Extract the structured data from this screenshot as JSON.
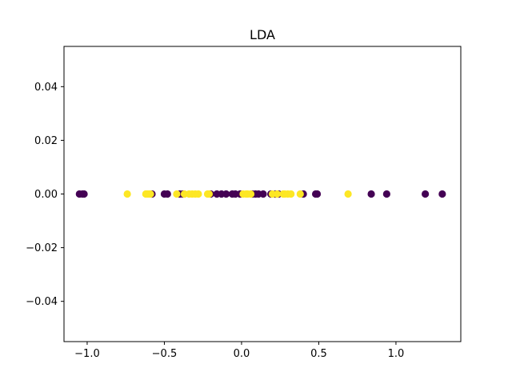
{
  "chart_data": {
    "type": "scatter",
    "title": "LDA",
    "xlabel": "",
    "ylabel": "",
    "xlim": [
      -1.15,
      1.42
    ],
    "ylim": [
      -0.055,
      0.055
    ],
    "xticks": [
      -1.0,
      -0.5,
      0.0,
      0.5,
      1.0
    ],
    "xtick_labels": [
      "−1.0",
      "−0.5",
      "0.0",
      "0.5",
      "1.0"
    ],
    "yticks": [
      -0.04,
      -0.02,
      0.0,
      0.02,
      0.04
    ],
    "ytick_labels": [
      "−0.04",
      "−0.02",
      "0.00",
      "0.02",
      "0.04"
    ],
    "grid": false,
    "colors": {
      "class_0": "#440154",
      "class_1": "#fde725",
      "axes": "#000000",
      "background": "#ffffff"
    },
    "series": [
      {
        "color": "#440154",
        "x": [
          -1.05,
          -1.03,
          -1.02,
          -0.58,
          -0.5,
          -0.48,
          -0.4,
          -0.38,
          -0.2,
          -0.16,
          -0.13,
          -0.1,
          -0.06,
          -0.04,
          -0.01,
          0.07,
          0.09,
          0.11,
          0.14,
          0.19,
          0.22,
          0.24,
          0.4,
          0.48,
          0.49,
          0.84,
          0.94,
          1.19,
          1.3
        ],
        "y": [
          0,
          0,
          0,
          0,
          0,
          0,
          0,
          0,
          0,
          0,
          0,
          0,
          0,
          0,
          0,
          0,
          0,
          0,
          0,
          0,
          0,
          0,
          0,
          0,
          0,
          0,
          0,
          0,
          0
        ]
      },
      {
        "color": "#fde725",
        "x": [
          -0.74,
          -0.62,
          -0.61,
          -0.6,
          -0.59,
          -0.42,
          -0.37,
          -0.34,
          -0.32,
          -0.3,
          -0.28,
          -0.22,
          -0.21,
          0.01,
          0.03,
          0.04,
          0.06,
          0.2,
          0.23,
          0.27,
          0.28,
          0.3,
          0.32,
          0.38,
          0.69
        ],
        "y": [
          0,
          0,
          0,
          0,
          0,
          0,
          0,
          0,
          0,
          0,
          0,
          0,
          0,
          0,
          0,
          0,
          0,
          0,
          0,
          0,
          0,
          0,
          0,
          0,
          0
        ]
      }
    ]
  }
}
